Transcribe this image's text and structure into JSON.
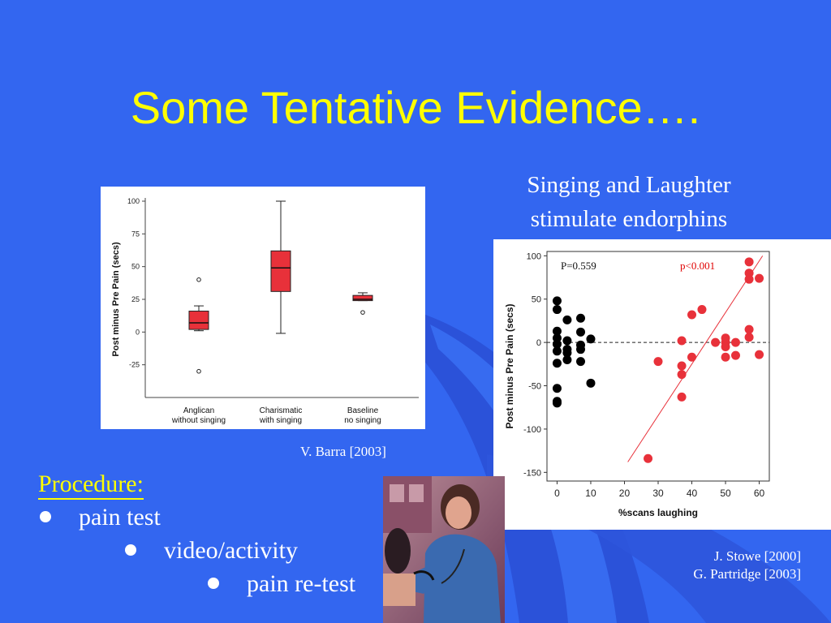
{
  "slide": {
    "title": "Some Tentative Evidence….",
    "subtitle_line1": "Singing and Laughter",
    "subtitle_line2": "stimulate endorphins",
    "citation_left": "V. Barra [2003]",
    "citation_right_line1": "J. Stowe [2000]",
    "citation_right_line2": "G. Partridge [2003]"
  },
  "procedure": {
    "heading": "Procedure:",
    "items": [
      "pain test",
      "video/activity",
      "pain re-test"
    ]
  },
  "colors": {
    "background": "#3366f0",
    "title": "#ffff00",
    "marker_red": "#e8313a",
    "marker_black": "#000000"
  },
  "photo": {
    "icon": "nurse-taking-blood-pressure-photo"
  },
  "chart_data": [
    {
      "type": "box",
      "xlabel": "",
      "ylabel": "Post minus Pre Pain (secs)",
      "ylim": [
        -25,
        100
      ],
      "yticks": [
        "100",
        "75",
        "50",
        "25",
        "0",
        "-25"
      ],
      "categories": [
        {
          "line1": "Anglican",
          "line2": "without singing"
        },
        {
          "line1": "Charismatic",
          "line2": "with singing"
        },
        {
          "line1": "Baseline",
          "line2": "no singing"
        }
      ],
      "boxes": [
        {
          "whisker_low": 1,
          "q1": 2,
          "median": 7,
          "q3": 16,
          "whisker_high": 20,
          "outliers": [
            40,
            -30
          ]
        },
        {
          "whisker_low": -1,
          "q1": 31,
          "median": 49,
          "q3": 62,
          "whisker_high": 100,
          "outliers": []
        },
        {
          "whisker_low": 24,
          "q1": 24,
          "median": 25,
          "q3": 28,
          "whisker_high": 30,
          "outliers": [
            15
          ]
        }
      ]
    },
    {
      "type": "scatter",
      "xlabel": "%scans laughing",
      "ylabel": "Post minus Pre Pain (secs)",
      "xlim": [
        -3,
        63
      ],
      "ylim": [
        -160,
        105
      ],
      "xticks": [
        "0",
        "10",
        "20",
        "30",
        "40",
        "50",
        "60"
      ],
      "yticks": [
        "100",
        "50",
        "0",
        "-50",
        "-100",
        "-150"
      ],
      "annotations": {
        "left": "P=0.559",
        "right": "p<0.001"
      },
      "series": [
        {
          "points": [
            [
              0,
              48
            ],
            [
              0,
              38
            ],
            [
              0,
              13
            ],
            [
              0,
              5
            ],
            [
              0,
              -2
            ],
            [
              0,
              -10
            ],
            [
              0,
              -24
            ],
            [
              0,
              -53
            ],
            [
              0,
              -68
            ],
            [
              0,
              -70
            ],
            [
              3,
              26
            ],
            [
              3,
              -8
            ],
            [
              3,
              -12
            ],
            [
              3,
              -20
            ],
            [
              3,
              2
            ],
            [
              7,
              28
            ],
            [
              7,
              12
            ],
            [
              7,
              -3
            ],
            [
              7,
              -8
            ],
            [
              7,
              -22
            ],
            [
              10,
              4
            ],
            [
              10,
              -47
            ]
          ]
        },
        {
          "points": [
            [
              27,
              -134
            ],
            [
              30,
              -22
            ],
            [
              37,
              2
            ],
            [
              37,
              -27
            ],
            [
              37,
              -37
            ],
            [
              37,
              -63
            ],
            [
              40,
              32
            ],
            [
              40,
              -17
            ],
            [
              43,
              38
            ],
            [
              47,
              0
            ],
            [
              50,
              5
            ],
            [
              50,
              0
            ],
            [
              50,
              -5
            ],
            [
              50,
              -17
            ],
            [
              53,
              0
            ],
            [
              53,
              -15
            ],
            [
              57,
              93
            ],
            [
              57,
              80
            ],
            [
              57,
              73
            ],
            [
              57,
              15
            ],
            [
              57,
              6
            ],
            [
              60,
              74
            ],
            [
              60,
              -14
            ]
          ]
        }
      ],
      "regression": {
        "x1": 21,
        "y1": -138,
        "x2": 61,
        "y2": 100
      }
    }
  ]
}
